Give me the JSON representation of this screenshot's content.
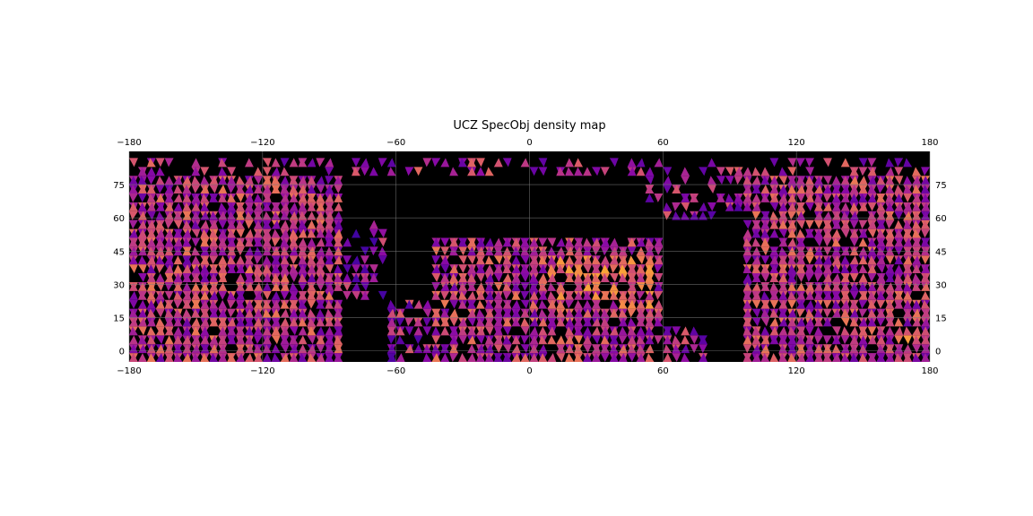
{
  "chart_data": {
    "type": "heatmap",
    "title": "UCZ SpecObj density map",
    "xlabel": "",
    "ylabel": "",
    "xlim": [
      -180,
      180
    ],
    "ylim": [
      -5,
      90
    ],
    "x_ticks": [
      -180,
      -120,
      -60,
      0,
      60,
      120,
      180
    ],
    "x_tick_labels": [
      "−180",
      "−120",
      "−60",
      "0",
      "60",
      "120",
      "180"
    ],
    "y_ticks": [
      0,
      15,
      30,
      45,
      60,
      75
    ],
    "y_tick_labels": [
      "0",
      "15",
      "30",
      "45",
      "60",
      "75"
    ],
    "x_axis_labels_top_and_bottom": true,
    "y_axis_labels_left_and_right": true,
    "grid": true,
    "background_color": "#000000",
    "grid_color": "#808080",
    "colormap": "plasma",
    "colormap_stops": [
      "#2a06a0",
      "#5b02a3",
      "#8b0aa5",
      "#b83289",
      "#db5c68",
      "#f48849",
      "#febc2a"
    ],
    "cell_shape": "triangle",
    "density_regions": [
      {
        "lon_range": [
          -180,
          -85
        ],
        "lat_range": [
          -5,
          88
        ],
        "density": 0.85,
        "level": 0.5
      },
      {
        "lon_range": [
          -85,
          -65
        ],
        "lat_range": [
          25,
          60
        ],
        "density": 0.35,
        "level": 0.35
      },
      {
        "lon_range": [
          -65,
          -45
        ],
        "lat_range": [
          -5,
          25
        ],
        "density": 0.45,
        "level": 0.4
      },
      {
        "lon_range": [
          -45,
          60
        ],
        "lat_range": [
          -5,
          50
        ],
        "density": 0.8,
        "level": 0.5
      },
      {
        "lon_range": [
          10,
          55
        ],
        "lat_range": [
          20,
          45
        ],
        "density": 0.85,
        "level": 0.65
      },
      {
        "lon_range": [
          58,
          82
        ],
        "lat_range": [
          -5,
          10
        ],
        "density": 0.55,
        "level": 0.4
      },
      {
        "lon_range": [
          52,
          95
        ],
        "lat_range": [
          60,
          82
        ],
        "density": 0.35,
        "level": 0.4
      },
      {
        "lon_range": [
          95,
          180
        ],
        "lat_range": [
          -5,
          88
        ],
        "density": 0.85,
        "level": 0.5
      },
      {
        "lon_range": [
          -180,
          180
        ],
        "lat_range": [
          80,
          88
        ],
        "density": 0.3,
        "level": 0.45
      }
    ],
    "hotspots": [
      {
        "lon": -165,
        "lat": 10,
        "level": 0.9
      },
      {
        "lon": -170,
        "lat": 28,
        "level": 0.95
      },
      {
        "lon": -140,
        "lat": 12,
        "level": 0.8
      },
      {
        "lon": -120,
        "lat": 20,
        "level": 0.85
      },
      {
        "lon": 40,
        "lat": 40,
        "level": 0.8
      },
      {
        "lon": 170,
        "lat": 5,
        "level": 0.9
      },
      {
        "lon": 165,
        "lat": 25,
        "level": 0.85
      },
      {
        "lon": 120,
        "lat": 55,
        "level": 0.7
      }
    ]
  }
}
